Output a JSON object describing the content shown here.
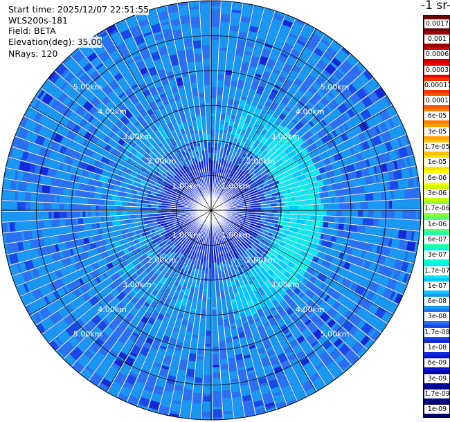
{
  "info": {
    "start_time": "Start time: 2025/12/07 22:51:55",
    "instrument": "WLS200s-181",
    "field": "Field: BETA",
    "elevation": "Elevation(deg): 35.00",
    "nrays": "NRays: 120"
  },
  "colorbar": {
    "unit_label": "-1 sr-",
    "labels": [
      "0.0017",
      "0.001",
      "0.0006",
      "0.0003",
      "0.00017",
      "0.0001",
      "6e-05",
      "3e-05",
      "1.7e-05",
      "1e-05",
      "6e-06",
      "3e-06",
      "1.7e-06",
      "1e-06",
      "6e-07",
      "3e-07",
      "1.7e-07",
      "1e-07",
      "6e-08",
      "3e-08",
      "1.7e-08",
      "1e-08",
      "6e-09",
      "3e-09",
      "1.7e-09",
      "1e-09"
    ],
    "colors": [
      "#6a0000",
      "#9a0000",
      "#c80000",
      "#ee0000",
      "#ff3300",
      "#ff5a00",
      "#ff7f00",
      "#ffa200",
      "#ffc200",
      "#ffe000",
      "#ffff00",
      "#c8ff00",
      "#90ff30",
      "#50ff70",
      "#20ffa8",
      "#00ffd8",
      "#10e8f0",
      "#00c8ff",
      "#1898f0",
      "#2a70f0",
      "#1848e8",
      "#1428d8",
      "#0a10c8",
      "#0008a8",
      "#000688",
      "#000068"
    ]
  },
  "range_labels": [
    "1.00km",
    "2.00km",
    "3.00km",
    "4.00km",
    "5.00km"
  ],
  "chart_data": {
    "type": "heatmap",
    "projection": "polar PPI",
    "field": "BETA",
    "elevation_deg": 35.0,
    "n_rays": 120,
    "range_rings_km": [
      1,
      2,
      3,
      4,
      5
    ],
    "max_range_km": 6.0,
    "radial_spokes_deg": [
      0,
      30,
      60,
      90,
      120,
      150,
      180,
      210,
      240,
      270,
      300,
      330
    ],
    "levels": [
      "0.0017",
      "0.001",
      "0.0006",
      "0.0003",
      "0.00017",
      "0.0001",
      "6e-05",
      "3e-05",
      "1.7e-05",
      "1e-05",
      "6e-06",
      "3e-06",
      "1.7e-06",
      "1e-06",
      "6e-07",
      "3e-07",
      "1.7e-07",
      "1e-07",
      "6e-08",
      "3e-08",
      "1.7e-08",
      "1e-08",
      "6e-09",
      "3e-09",
      "1.7e-09",
      "1e-09"
    ],
    "field_regions": [
      {
        "range_km": [
          0.0,
          1.5
        ],
        "level": "1e-08"
      },
      {
        "range_km": [
          1.5,
          2.0
        ],
        "level": "6e-08"
      },
      {
        "range_km": [
          2.0,
          3.2
        ],
        "level": "1e-07",
        "strongest_azimuth_deg": 90
      },
      {
        "range_km": [
          3.2,
          6.0
        ],
        "level": "6e-08"
      }
    ]
  }
}
